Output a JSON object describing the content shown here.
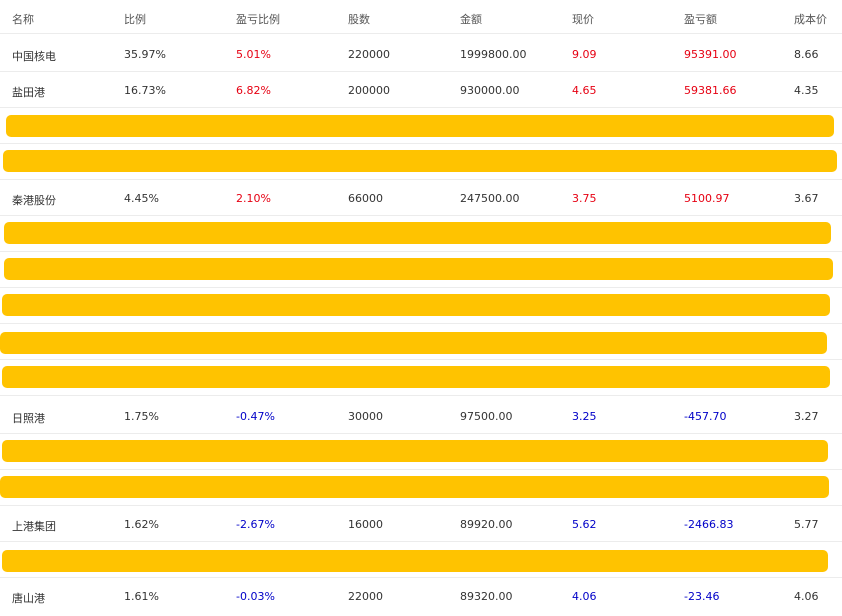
{
  "columns": {
    "name": "名称",
    "ratio": "比例",
    "pl_ratio": "盈亏比例",
    "shares": "股数",
    "amount": "金额",
    "price": "现价",
    "pl": "盈亏额",
    "cost": "成本价"
  },
  "colors": {
    "gain": "#e60012",
    "loss": "#0000c8",
    "redaction": "#ffc300"
  },
  "rows": [
    {
      "name": "中国核电",
      "ratio": "35.97%",
      "pl_ratio": "5.01%",
      "shares": "220000",
      "amount": "1999800.00",
      "price": "9.09",
      "pl": "95391.00",
      "cost": "8.66"
    },
    {
      "name": "盐田港",
      "ratio": "16.73%",
      "pl_ratio": "6.82%",
      "shares": "200000",
      "amount": "930000.00",
      "price": "4.65",
      "pl": "59381.66",
      "cost": "4.35"
    },
    {
      "name": "秦港股份",
      "ratio": "4.45%",
      "pl_ratio": "2.10%",
      "shares": "66000",
      "amount": "247500.00",
      "price": "3.75",
      "pl": "5100.97",
      "cost": "3.67"
    },
    {
      "name": "日照港",
      "ratio": "1.75%",
      "pl_ratio": "-0.47%",
      "shares": "30000",
      "amount": "97500.00",
      "price": "3.25",
      "pl": "-457.70",
      "cost": "3.27"
    },
    {
      "name": "上港集团",
      "ratio": "1.62%",
      "pl_ratio": "-2.67%",
      "shares": "16000",
      "amount": "89920.00",
      "price": "5.62",
      "pl": "-2466.83",
      "cost": "5.77"
    },
    {
      "name": "唐山港",
      "ratio": "1.61%",
      "pl_ratio": "-0.03%",
      "shares": "22000",
      "amount": "89320.00",
      "price": "4.06",
      "pl": "-23.46",
      "cost": "4.06"
    }
  ]
}
